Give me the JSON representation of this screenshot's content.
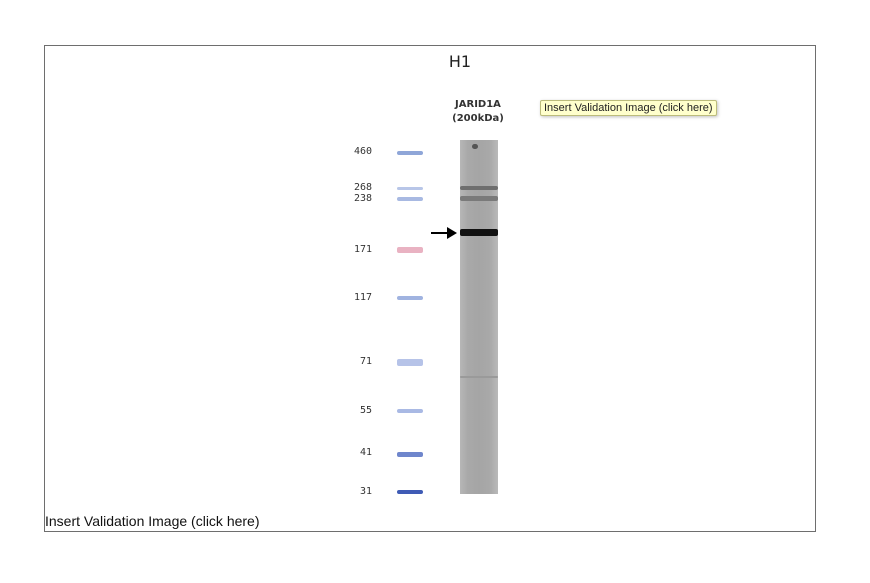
{
  "figure": {
    "title": "H1",
    "lane_label_line1": "JARID1A",
    "lane_label_line2": "(200kDa)",
    "markers": [
      "460",
      "268",
      "238",
      "171",
      "117",
      "71",
      "55",
      "41",
      "31"
    ]
  },
  "tooltip": {
    "text": "Insert Validation Image (click here)"
  },
  "link": {
    "text": "Insert Validation Image (click here)"
  }
}
